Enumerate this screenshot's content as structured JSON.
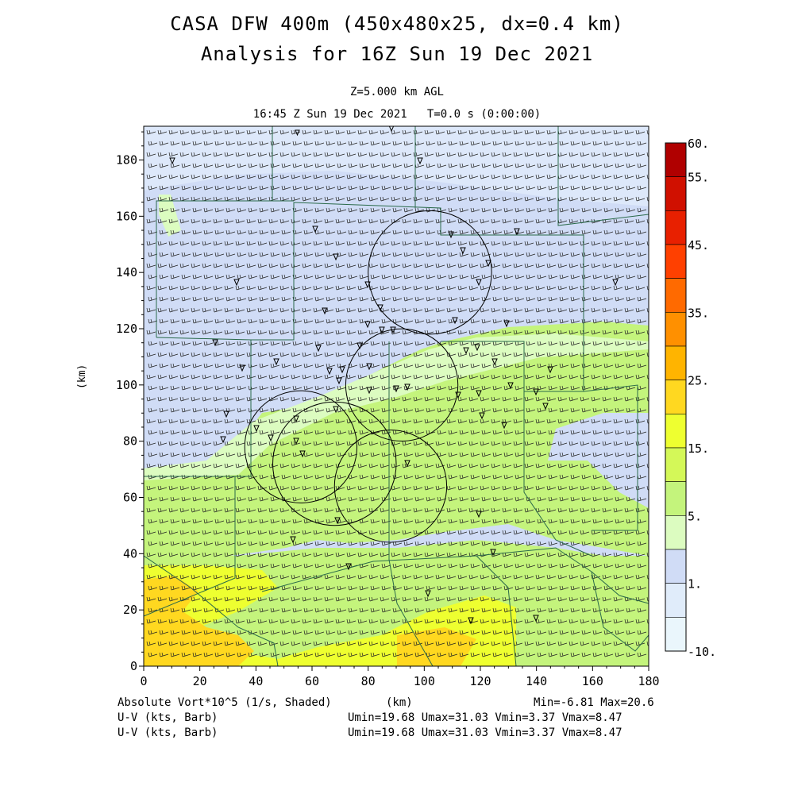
{
  "header": {
    "title_line1": "CASA DFW 400m (450x480x25, dx=0.4 km)",
    "title_line2": "Analysis for 16Z Sun 19 Dec 2021",
    "level_label": "Z=5.000 km AGL",
    "time_label": "16:45 Z Sun 19 Dec 2021   T=0.0 s (0:00:00)"
  },
  "axes": {
    "y_label": "(km)",
    "x_label": "(km)",
    "x_ticks": [
      "0",
      "20",
      "40",
      "60",
      "80",
      "100",
      "120",
      "140",
      "160",
      "180"
    ],
    "y_ticks": [
      "0",
      "20",
      "40",
      "60",
      "80",
      "100",
      "120",
      "140",
      "160",
      "180"
    ],
    "x_range": [
      0,
      180
    ],
    "y_range": [
      0,
      192
    ]
  },
  "colorbar": {
    "labels": [
      "60.",
      "55.",
      "45.",
      "35.",
      "25.",
      "15.",
      "5.",
      "1.",
      "-10."
    ],
    "colors": [
      "#b00000",
      "#d01000",
      "#e82000",
      "#ff4000",
      "#ff6a00",
      "#ff9000",
      "#ffb400",
      "#ffd820",
      "#eeff30",
      "#d4f858",
      "#c4f47c",
      "#dcfcc0",
      "#d0dcf6",
      "#e0ecfa",
      "#eaf6fc"
    ]
  },
  "footer": {
    "field_label": "Absolute Vort*10^5 (1/s, Shaded)",
    "field_minmax": "Min=-6.81 Max=20.6",
    "x_unit": "(km)",
    "vector_label_1": "U-V (kts, Barb)",
    "vector_stats_1": "Umin=19.68 Umax=31.03 Vmin=3.37 Vmax=8.47",
    "vector_label_2": "U-V (kts, Barb)",
    "vector_stats_2": "Umin=19.68 Umax=31.03 Vmin=3.37 Vmax=8.47"
  },
  "map": {
    "background_color": "#d0dcf6",
    "radar_range_rings_km": [
      [
        68,
        72,
        22
      ],
      [
        88,
        64,
        20
      ],
      [
        56,
        78,
        20
      ],
      [
        92,
        100,
        20
      ],
      [
        102,
        140,
        22
      ]
    ],
    "radar_sites_km": [
      [
        68,
        72
      ],
      [
        88,
        64
      ],
      [
        56,
        78
      ],
      [
        92,
        100
      ],
      [
        102,
        140
      ]
    ]
  }
}
